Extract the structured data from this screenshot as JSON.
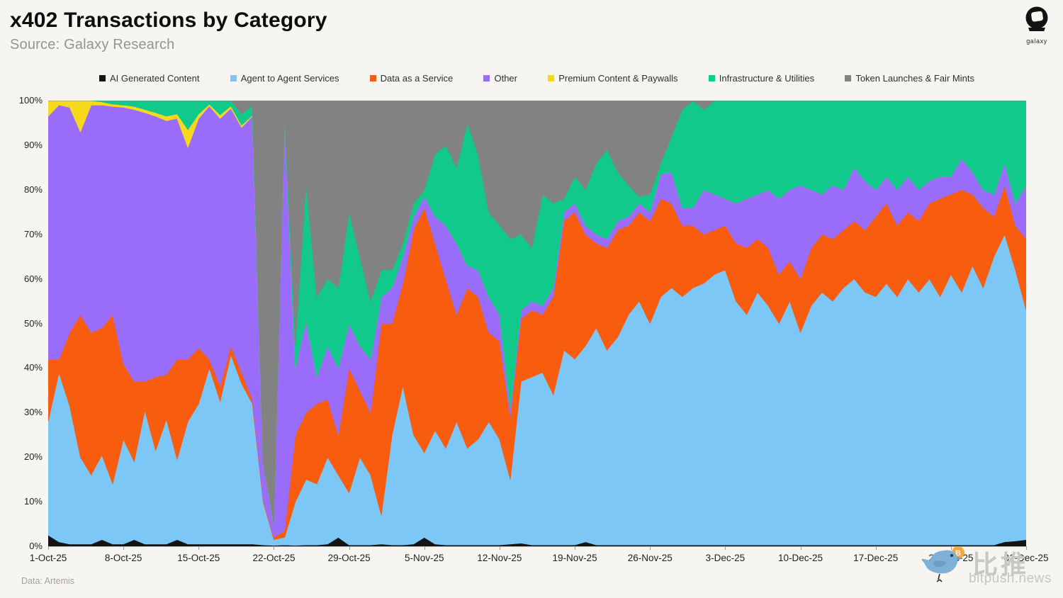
{
  "header": {
    "title": "x402 Transactions by Category",
    "source": "Source: Galaxy Research"
  },
  "logo": {
    "label": "galaxy"
  },
  "footer": {
    "data_note": "Data: Artemis"
  },
  "watermark": {
    "cjk": "比推",
    "domain": "bitpush.news"
  },
  "chart_data": {
    "type": "area",
    "stacked": true,
    "unit": "percent of daily transactions",
    "title": "x402 Transactions by Category",
    "ylim": [
      0,
      100
    ],
    "grid": false,
    "legend_position": "top",
    "y_ticks": [
      "0%",
      "10%",
      "20%",
      "30%",
      "40%",
      "50%",
      "60%",
      "70%",
      "80%",
      "90%",
      "100%"
    ],
    "x_tick_indices": [
      0,
      7,
      14,
      21,
      28,
      35,
      42,
      49,
      56,
      63,
      70,
      77,
      84,
      91
    ],
    "x": [
      "1-Oct-25",
      "2-Oct-25",
      "3-Oct-25",
      "4-Oct-25",
      "5-Oct-25",
      "6-Oct-25",
      "7-Oct-25",
      "8-Oct-25",
      "9-Oct-25",
      "10-Oct-25",
      "11-Oct-25",
      "12-Oct-25",
      "13-Oct-25",
      "14-Oct-25",
      "15-Oct-25",
      "16-Oct-25",
      "17-Oct-25",
      "18-Oct-25",
      "19-Oct-25",
      "20-Oct-25",
      "21-Oct-25",
      "22-Oct-25",
      "23-Oct-25",
      "24-Oct-25",
      "25-Oct-25",
      "26-Oct-25",
      "27-Oct-25",
      "28-Oct-25",
      "29-Oct-25",
      "30-Oct-25",
      "31-Oct-25",
      "1-Nov-25",
      "2-Nov-25",
      "3-Nov-25",
      "4-Nov-25",
      "5-Nov-25",
      "6-Nov-25",
      "7-Nov-25",
      "8-Nov-25",
      "9-Nov-25",
      "10-Nov-25",
      "11-Nov-25",
      "12-Nov-25",
      "13-Nov-25",
      "14-Nov-25",
      "15-Nov-25",
      "16-Nov-25",
      "17-Nov-25",
      "18-Nov-25",
      "19-Nov-25",
      "20-Nov-25",
      "21-Nov-25",
      "22-Nov-25",
      "23-Nov-25",
      "24-Nov-25",
      "25-Nov-25",
      "26-Nov-25",
      "27-Nov-25",
      "28-Nov-25",
      "29-Nov-25",
      "30-Nov-25",
      "1-Dec-25",
      "2-Dec-25",
      "3-Dec-25",
      "4-Dec-25",
      "5-Dec-25",
      "6-Dec-25",
      "7-Dec-25",
      "8-Dec-25",
      "9-Dec-25",
      "10-Dec-25",
      "11-Dec-25",
      "12-Dec-25",
      "13-Dec-25",
      "14-Dec-25",
      "15-Dec-25",
      "16-Dec-25",
      "17-Dec-25",
      "18-Dec-25",
      "19-Dec-25",
      "20-Dec-25",
      "21-Dec-25",
      "22-Dec-25",
      "23-Dec-25",
      "24-Dec-25",
      "25-Dec-25",
      "26-Dec-25",
      "27-Dec-25",
      "28-Dec-25",
      "29-Dec-25",
      "30-Dec-25",
      "31-Dec-25"
    ],
    "series": [
      {
        "name": "AI Generated Content",
        "color": "#141414",
        "values": [
          2.5,
          1,
          0.5,
          0.5,
          0.5,
          1.5,
          0.5,
          0.5,
          1.5,
          0.5,
          0.5,
          0.5,
          1.5,
          0.5,
          0.5,
          0.5,
          0.5,
          0.5,
          0.5,
          0.5,
          0.3,
          0.2,
          0.3,
          0.2,
          0.3,
          0.3,
          0.5,
          2,
          0.3,
          0.3,
          0.3,
          0.5,
          0.3,
          0.3,
          0.5,
          2,
          0.5,
          0.3,
          0.3,
          0.3,
          0.3,
          0.3,
          0.3,
          0.5,
          0.7,
          0.3,
          0.3,
          0.3,
          0.3,
          0.3,
          1,
          0.3,
          0.3,
          0.3,
          0.3,
          0.3,
          0.3,
          0.3,
          0.3,
          0.3,
          0.3,
          0.3,
          0.3,
          0.3,
          0.3,
          0.3,
          0.3,
          0.3,
          0.3,
          0.3,
          0.3,
          0.3,
          0.3,
          0.3,
          0.3,
          0.3,
          0.3,
          0.3,
          0.3,
          0.3,
          0.3,
          0.3,
          0.3,
          0.3,
          0.3,
          0.3,
          0.3,
          0.3,
          0.3,
          1,
          1.2,
          1.5
        ]
      },
      {
        "name": "Agent to Agent Services",
        "color": "#7cc7f5",
        "values": [
          25.5,
          38,
          31,
          19.5,
          15.5,
          19,
          13.5,
          23.5,
          17.5,
          30,
          21,
          28,
          18,
          27.5,
          31.5,
          39.5,
          32,
          42.5,
          36,
          31.5,
          9.7,
          1.3,
          1.7,
          9.8,
          14.7,
          13.7,
          19.5,
          14,
          11.7,
          19.7,
          15.7,
          6.5,
          24.7,
          35.7,
          24.5,
          19,
          25.5,
          21.7,
          27.7,
          21.7,
          23.7,
          27.7,
          23.7,
          14.5,
          36.3,
          37.7,
          38.7,
          33.7,
          43.7,
          41.7,
          44,
          48.7,
          43.7,
          46.7,
          51.7,
          54.7,
          49.7,
          55.7,
          57.7,
          55.7,
          57.7,
          58.7,
          60.7,
          61.7,
          54.7,
          51.7,
          56.7,
          53.7,
          49.7,
          54.7,
          47.7,
          53.7,
          56.7,
          54.7,
          57.7,
          59.7,
          56.7,
          55.7,
          58.7,
          55.7,
          59.7,
          56.7,
          59.7,
          55.7,
          60.7,
          56.7,
          62.7,
          57.7,
          64.7,
          69,
          60.8,
          51.5
        ]
      },
      {
        "name": "Data as a Service",
        "color": "#f85c0f",
        "values": [
          14,
          3,
          16.5,
          32,
          32,
          28.5,
          38,
          17,
          18,
          6.5,
          16.5,
          10,
          22.5,
          14,
          12.5,
          2,
          3.5,
          2,
          2.5,
          1,
          0.5,
          0.5,
          1.5,
          15,
          15,
          18,
          13,
          9,
          28,
          15,
          14,
          43,
          25,
          23,
          46,
          55,
          42,
          38,
          24,
          36,
          32,
          20,
          22,
          14,
          14,
          15,
          13,
          22,
          29,
          33,
          25,
          19,
          23,
          24,
          20,
          20,
          23,
          22,
          19,
          16,
          14,
          11,
          10,
          10,
          13,
          15,
          12,
          13,
          11,
          9,
          12,
          13,
          13,
          14,
          13,
          13,
          14,
          18,
          18,
          16,
          15,
          16,
          17,
          22,
          18,
          23,
          16,
          18,
          9,
          11,
          10,
          16
        ]
      },
      {
        "name": "Other",
        "color": "#9a6cfa",
        "values": [
          54.5,
          57,
          50.5,
          41,
          51,
          50,
          46.7,
          57.5,
          61,
          60.3,
          58.5,
          57,
          54,
          47.5,
          51.5,
          56.8,
          60,
          53.3,
          55,
          63.5,
          8,
          3,
          92.5,
          15,
          20.7,
          6,
          12,
          15,
          10,
          10,
          12,
          6,
          8,
          6,
          3,
          2.5,
          6,
          12,
          16,
          5,
          6,
          8,
          6,
          2,
          2,
          2,
          2,
          2,
          2,
          2,
          2,
          2,
          2,
          2,
          2,
          2,
          2,
          5.5,
          7,
          4,
          4,
          10,
          8,
          6,
          9,
          11,
          10,
          13,
          17,
          16,
          21,
          13,
          9,
          12,
          9,
          12,
          11,
          6,
          6,
          8,
          8,
          7,
          5,
          5,
          4,
          7,
          5,
          4,
          5,
          5,
          5,
          12
        ]
      },
      {
        "name": "Premium Content & Paywalls",
        "color": "#f8d81c",
        "values": [
          3.5,
          1,
          1.5,
          7,
          1,
          0.7,
          0.5,
          0.5,
          0.7,
          0.7,
          0.8,
          1,
          1,
          4,
          1,
          0.4,
          0.8,
          0.5,
          0.5,
          0.2,
          0,
          0,
          0,
          0,
          0,
          0,
          0,
          0,
          0,
          0,
          0,
          0,
          0,
          0,
          0,
          0,
          0,
          0,
          0,
          0,
          0,
          0,
          0,
          0,
          0,
          0,
          0,
          0,
          0,
          0,
          0,
          0,
          0,
          0,
          0,
          0,
          0,
          0,
          0,
          0,
          0,
          0,
          0,
          0,
          0,
          0,
          0,
          0,
          0,
          0,
          0,
          0,
          0,
          0,
          0,
          0,
          0,
          0,
          0,
          0,
          0,
          0,
          0,
          0,
          0,
          0,
          0,
          0,
          0,
          0,
          0,
          0
        ]
      },
      {
        "name": "Infrastructure & Utilities",
        "color": "#10c98a",
        "values": [
          0,
          0,
          0,
          0,
          0,
          0.3,
          0.8,
          1,
          1.3,
          2,
          2.7,
          3.5,
          3,
          6.5,
          3,
          0.8,
          3.2,
          1.2,
          2.5,
          2.3,
          0.2,
          0.2,
          1,
          5.5,
          30.9,
          18,
          15,
          18,
          25,
          20,
          13,
          6,
          4,
          3,
          3,
          1.5,
          14,
          18,
          17,
          32,
          26,
          19,
          20,
          38,
          17,
          12,
          25,
          19,
          3,
          6,
          8,
          16,
          20,
          11,
          7,
          1.5,
          4,
          2.5,
          8,
          22,
          24,
          18,
          21,
          22,
          23,
          22,
          21,
          20,
          22,
          20,
          19,
          20,
          21,
          19,
          20,
          15,
          18,
          20,
          17,
          20,
          17,
          20,
          18,
          17,
          17,
          13,
          16,
          20,
          21,
          14,
          23,
          19
        ]
      },
      {
        "name": "Token Launches & Fair Mints",
        "color": "#828282",
        "values": [
          0,
          0,
          0,
          0,
          0,
          0,
          0,
          0,
          0,
          0,
          0,
          0,
          0,
          0,
          0,
          0,
          0,
          0,
          3,
          1,
          81.3,
          94.8,
          3,
          54.5,
          18.4,
          44,
          40,
          42,
          25,
          35,
          45,
          38,
          38,
          32,
          23,
          20,
          12,
          10,
          15,
          5,
          12,
          25,
          28,
          31,
          30,
          33,
          21,
          23,
          22,
          17,
          20,
          14,
          11,
          16,
          19,
          21.5,
          21,
          14,
          8,
          2,
          0,
          2,
          0,
          0,
          0,
          0,
          0,
          0,
          0,
          0,
          0,
          0,
          0,
          0,
          0,
          0,
          0,
          0,
          0,
          0,
          0,
          0,
          0,
          0,
          0,
          0,
          0,
          0,
          0,
          0,
          0,
          0
        ]
      }
    ]
  }
}
